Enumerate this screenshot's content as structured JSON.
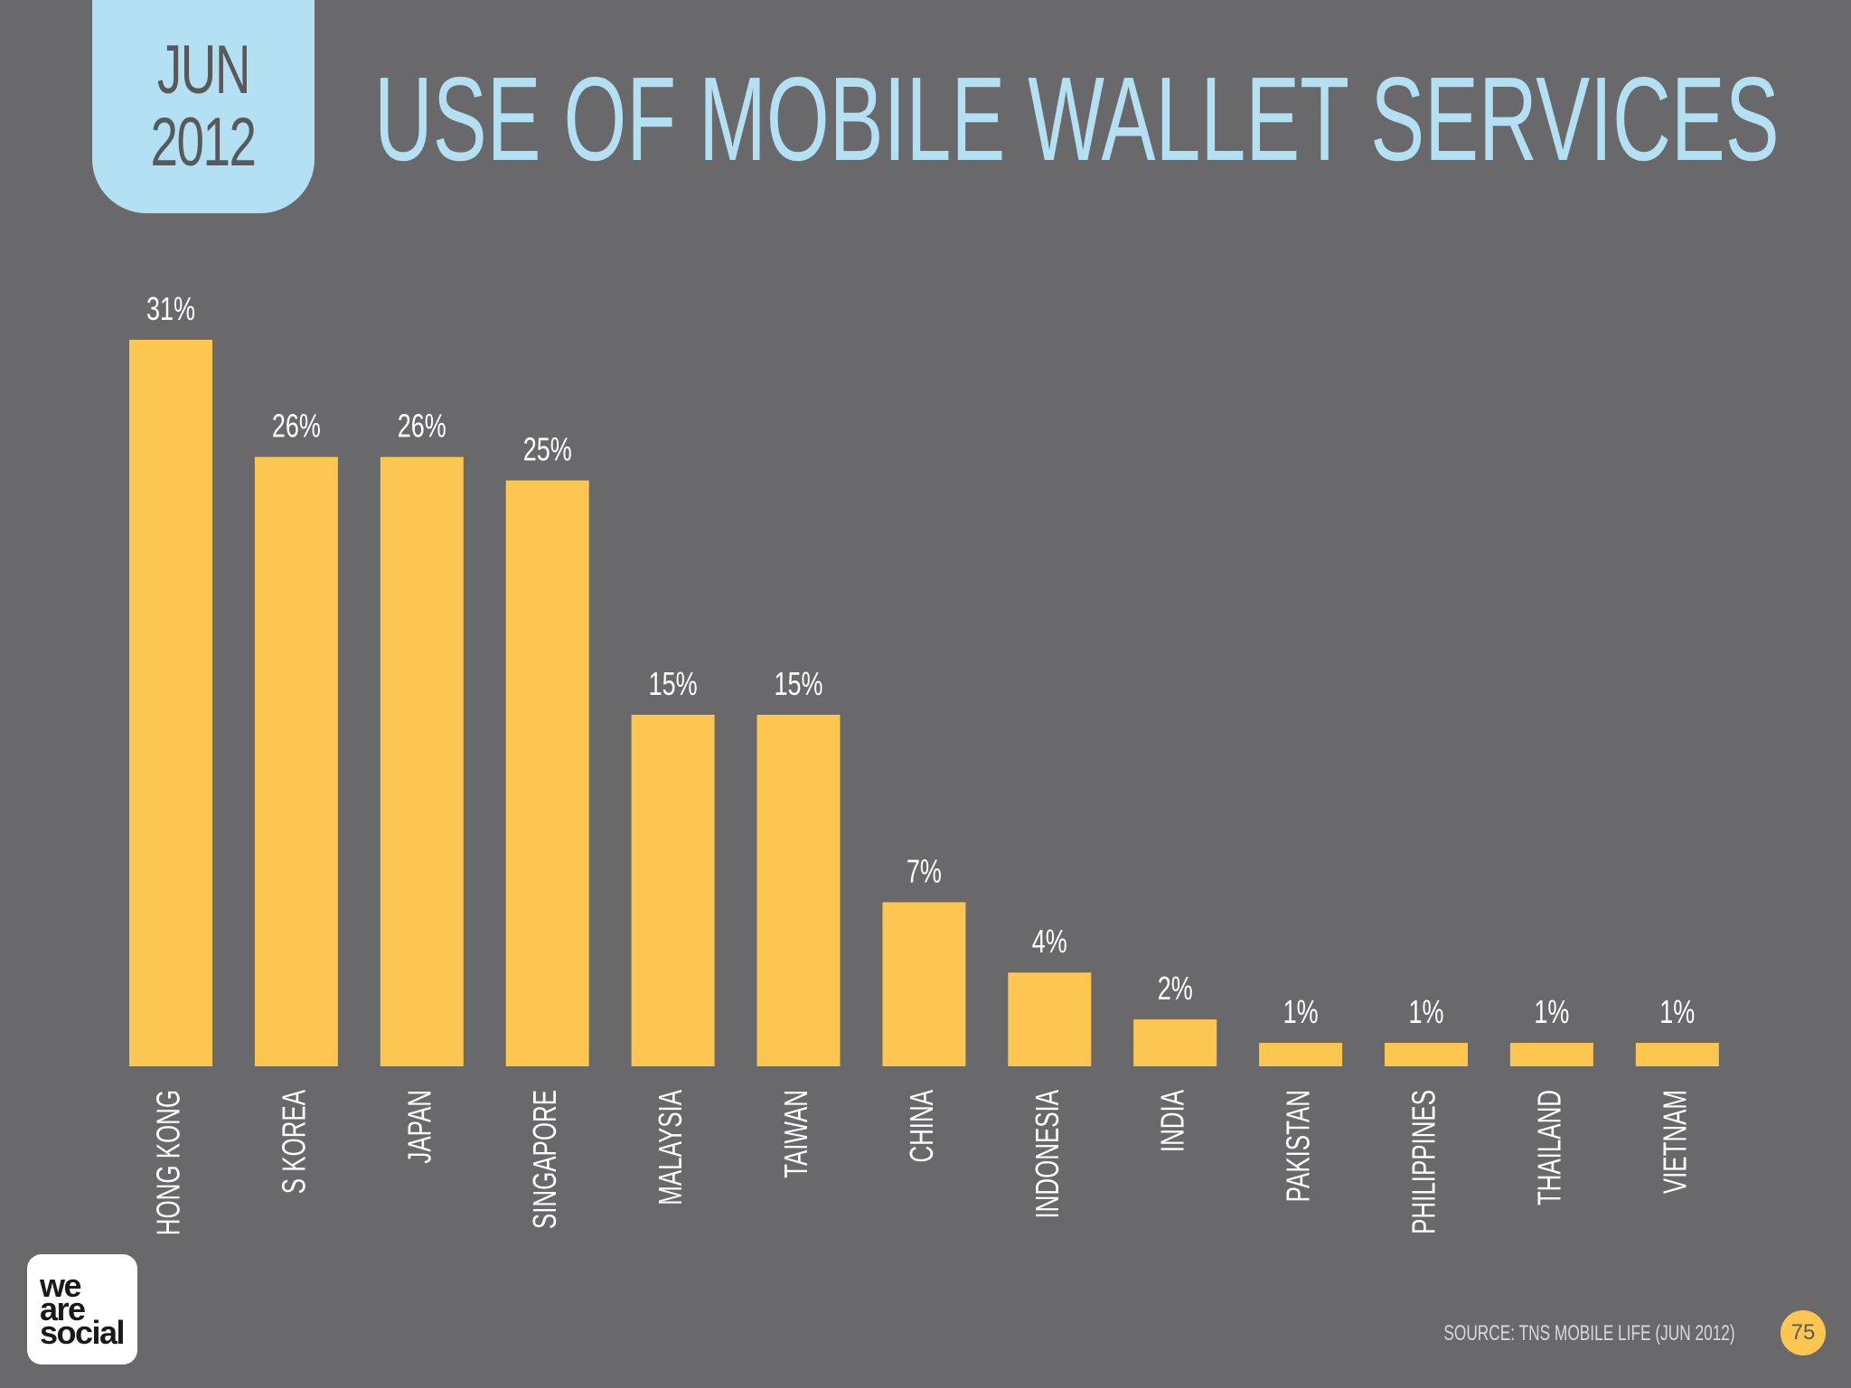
{
  "header": {
    "date_month": "JUN",
    "date_year": "2012",
    "title": "USE OF MOBILE WALLET SERVICES"
  },
  "colors": {
    "background": "#69686a",
    "bar": "#fdc651",
    "accent": "#b3e1f3",
    "label": "#ffffff"
  },
  "chart_data": {
    "type": "bar",
    "title": "USE OF MOBILE WALLET SERVICES",
    "xlabel": "",
    "ylabel": "",
    "ylim": [
      0,
      31
    ],
    "grid": false,
    "categories": [
      "HONG KONG",
      "S KOREA",
      "JAPAN",
      "SINGAPORE",
      "MALAYSIA",
      "TAIWAN",
      "CHINA",
      "INDONESIA",
      "INDIA",
      "PAKISTAN",
      "PHILIPPINES",
      "THAILAND",
      "VIETNAM"
    ],
    "values": [
      31,
      26,
      26,
      25,
      15,
      15,
      7,
      4,
      2,
      1,
      1,
      1,
      1
    ],
    "value_labels": [
      "31%",
      "26%",
      "26%",
      "25%",
      "15%",
      "15%",
      "7%",
      "4%",
      "2%",
      "1%",
      "1%",
      "1%",
      "1%"
    ]
  },
  "footer": {
    "logo_line1": "we",
    "logo_line2": "are",
    "logo_line3": "social",
    "source": "SOURCE: TNS MOBILE LIFE (JUN 2012)",
    "page_number": "75"
  }
}
